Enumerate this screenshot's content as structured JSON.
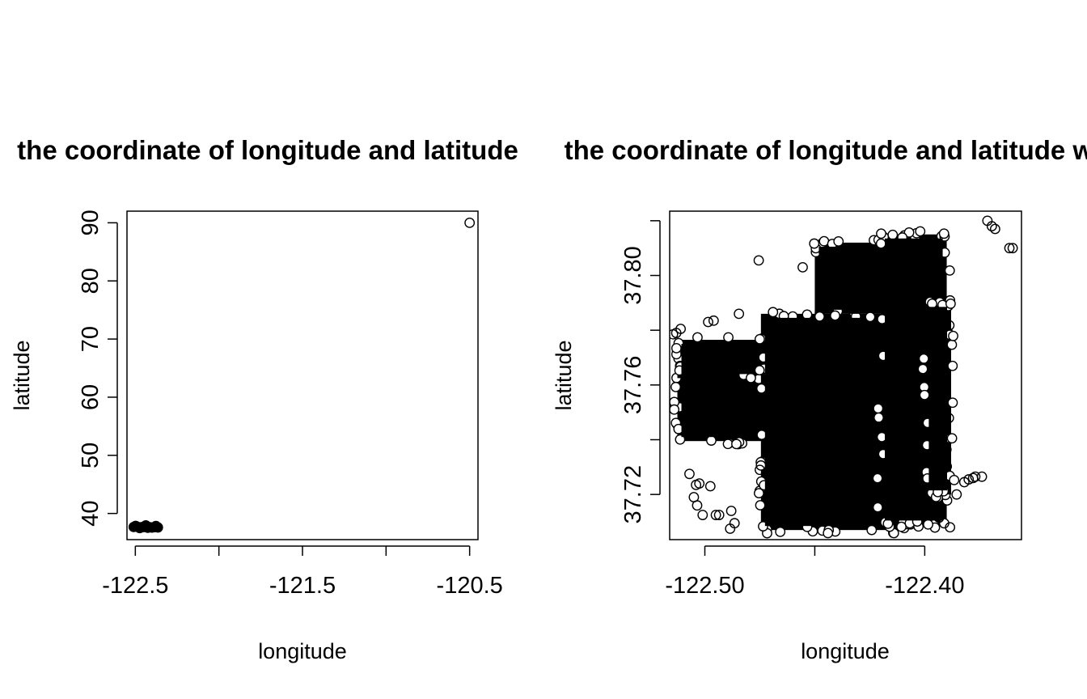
{
  "chart_data": [
    {
      "type": "scatter",
      "title": "the coordinate of longitude and latitude",
      "xlabel": "longitude",
      "ylabel": "latitude",
      "xlim": [
        -122.55,
        -120.45
      ],
      "ylim": [
        35.5,
        92
      ],
      "xticks": [
        -122.5,
        -122.0,
        -121.5,
        -121.0,
        -120.5
      ],
      "xtick_labels": [
        "-122.5",
        "",
        "-121.5",
        "",
        "-120.5"
      ],
      "yticks": [
        40,
        50,
        60,
        70,
        80,
        90
      ],
      "ytick_labels": [
        "40",
        "50",
        "60",
        "70",
        "80",
        "90"
      ],
      "grid": false,
      "series": [
        {
          "marker": "open-circle",
          "clusters": [
            {
              "x_range": [
                -122.51,
                -122.36
              ],
              "y_range": [
                37.7,
                37.82
              ]
            }
          ],
          "points": [
            {
              "x": -120.5,
              "y": 90
            }
          ]
        }
      ]
    },
    {
      "type": "scatter",
      "title": "the coordinate of longitude and latitude with",
      "xlabel": "longitude",
      "ylabel": "latitude",
      "xlim": [
        -122.516,
        -122.356
      ],
      "ylim": [
        37.7035,
        37.8235
      ],
      "xticks": [
        -122.5,
        -122.45,
        -122.4
      ],
      "xtick_labels": [
        "-122.50",
        "",
        "-122.40"
      ],
      "yticks": [
        37.72,
        37.74,
        37.76,
        37.78,
        37.8,
        37.82
      ],
      "ytick_labels": [
        "37.72",
        "",
        "37.76",
        "",
        "37.80",
        ""
      ],
      "grid": false,
      "series": [
        {
          "marker": "open-circle",
          "dense_regions": [
            {
              "x_range": [
                -122.5125,
                -122.4575
              ],
              "y_range": [
                37.7395,
                37.7715
              ]
            },
            {
              "x_range": [
                -122.5125,
                -122.4425
              ],
              "y_range": [
                37.7625,
                37.7765
              ]
            },
            {
              "x_range": [
                -122.4745,
                -122.41
              ],
              "y_range": [
                37.707,
                37.786
              ]
            },
            {
              "x_range": [
                -122.45,
                -122.41
              ],
              "y_range": [
                37.786,
                37.812
              ]
            },
            {
              "x_range": [
                -122.42,
                -122.39
              ],
              "y_range": [
                37.709,
                37.815
              ]
            },
            {
              "x_range": [
                -122.4,
                -122.388
              ],
              "y_range": [
                37.72,
                37.79
              ]
            }
          ],
          "points": [
            {
              "x": -122.5145,
              "y": 37.7785
            },
            {
              "x": -122.513,
              "y": 37.779
            },
            {
              "x": -122.511,
              "y": 37.7805
            },
            {
              "x": -122.4985,
              "y": 37.783
            },
            {
              "x": -122.496,
              "y": 37.7835
            },
            {
              "x": -122.4845,
              "y": 37.786
            },
            {
              "x": -122.4755,
              "y": 37.8055
            },
            {
              "x": -122.4555,
              "y": 37.803
            },
            {
              "x": -122.507,
              "y": 37.7275
            },
            {
              "x": -122.504,
              "y": 37.7235
            },
            {
              "x": -122.5025,
              "y": 37.724
            },
            {
              "x": -122.505,
              "y": 37.719
            },
            {
              "x": -122.5035,
              "y": 37.716
            },
            {
              "x": -122.501,
              "y": 37.7125
            },
            {
              "x": -122.4975,
              "y": 37.723
            },
            {
              "x": -122.495,
              "y": 37.7125
            },
            {
              "x": -122.4935,
              "y": 37.7125
            },
            {
              "x": -122.4885,
              "y": 37.7075
            },
            {
              "x": -122.4865,
              "y": 37.7095
            },
            {
              "x": -122.488,
              "y": 37.714
            },
            {
              "x": -122.475,
              "y": 37.729
            },
            {
              "x": -122.3885,
              "y": 37.708
            },
            {
              "x": -122.3935,
              "y": 37.7115
            },
            {
              "x": -122.3855,
              "y": 37.72
            },
            {
              "x": -122.382,
              "y": 37.7245
            },
            {
              "x": -122.38,
              "y": 37.7255
            },
            {
              "x": -122.378,
              "y": 37.726
            },
            {
              "x": -122.377,
              "y": 37.7265
            },
            {
              "x": -122.374,
              "y": 37.7265
            },
            {
              "x": -122.3715,
              "y": 37.82
            },
            {
              "x": -122.3695,
              "y": 37.818
            },
            {
              "x": -122.368,
              "y": 37.817
            },
            {
              "x": -122.3615,
              "y": 37.81
            },
            {
              "x": -122.36,
              "y": 37.81
            }
          ]
        }
      ]
    }
  ]
}
